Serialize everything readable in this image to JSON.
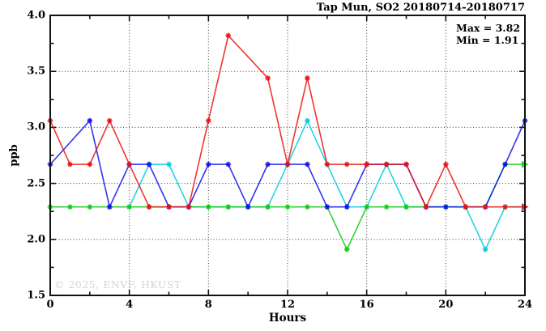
{
  "window": {
    "title": "Tap Mun, SO2 20180714-20180717",
    "watermark": "© 2025, ENVF, HKUST"
  },
  "annotation": {
    "max_label": "Max = 3.82",
    "min_label": "Min = 1.91"
  },
  "chart_data": {
    "type": "line",
    "title": "Tap Mun, SO2 20180714-20180717",
    "xlabel": "Hours",
    "ylabel": "ppb",
    "xlim": [
      0,
      24
    ],
    "ylim": [
      1.5,
      4.0
    ],
    "grid": true,
    "x_gridlines": [
      4,
      8,
      12,
      16,
      20
    ],
    "y_gridlines": [
      2.0,
      2.5,
      3.0,
      3.5
    ],
    "x_major_ticks": [
      0,
      4,
      8,
      12,
      16,
      20,
      24
    ],
    "x_tick_labels": [
      "0",
      "4",
      "8",
      "12",
      "16",
      "20",
      "24"
    ],
    "x_minor_step": 2,
    "y_major_ticks": [
      1.5,
      2.0,
      2.5,
      3.0,
      3.5,
      4.0
    ],
    "y_tick_labels": [
      "1.5",
      "2.0",
      "2.5",
      "3.0",
      "3.5",
      "4.0"
    ],
    "y_minor_step": 0.25,
    "stats": {
      "max": 3.82,
      "min": 1.91
    },
    "x": [
      0,
      1,
      2,
      3,
      4,
      5,
      6,
      7,
      8,
      9,
      10,
      11,
      12,
      13,
      14,
      15,
      16,
      17,
      18,
      19,
      20,
      21,
      22,
      23,
      24
    ],
    "series": [
      {
        "name": "cyan-series",
        "color": "#00ccdd",
        "end_arrow": true,
        "values": [
          null,
          null,
          null,
          null,
          2.29,
          2.67,
          2.67,
          2.29,
          2.29,
          2.29,
          2.29,
          2.29,
          2.67,
          3.06,
          2.67,
          2.29,
          2.29,
          2.67,
          2.29,
          2.29,
          2.29,
          2.29,
          1.91,
          2.29,
          2.29
        ]
      },
      {
        "name": "green-series",
        "color": "#11cc11",
        "end_arrow": true,
        "values": [
          2.29,
          2.29,
          2.29,
          2.29,
          2.29,
          2.29,
          2.29,
          2.29,
          2.29,
          2.29,
          2.29,
          2.29,
          2.29,
          2.29,
          2.29,
          1.91,
          2.29,
          2.29,
          2.29,
          2.29,
          2.29,
          2.29,
          2.29,
          2.67,
          2.67
        ]
      },
      {
        "name": "blue-series",
        "color": "#1111ee",
        "end_arrow": false,
        "values": [
          2.67,
          null,
          3.06,
          2.29,
          2.67,
          2.67,
          2.29,
          2.29,
          2.67,
          2.67,
          2.29,
          2.67,
          2.67,
          2.67,
          2.29,
          2.29,
          2.67,
          2.67,
          2.67,
          2.29,
          2.29,
          2.29,
          2.29,
          2.67,
          3.06
        ]
      },
      {
        "name": "red-series",
        "color": "#ee1111",
        "end_arrow": true,
        "values": [
          3.06,
          2.67,
          2.67,
          3.06,
          2.67,
          2.29,
          2.29,
          2.29,
          3.06,
          3.82,
          null,
          3.44,
          2.67,
          3.44,
          2.67,
          2.67,
          2.67,
          2.67,
          2.67,
          2.29,
          2.67,
          2.29,
          2.29,
          2.29,
          2.29
        ]
      }
    ]
  }
}
